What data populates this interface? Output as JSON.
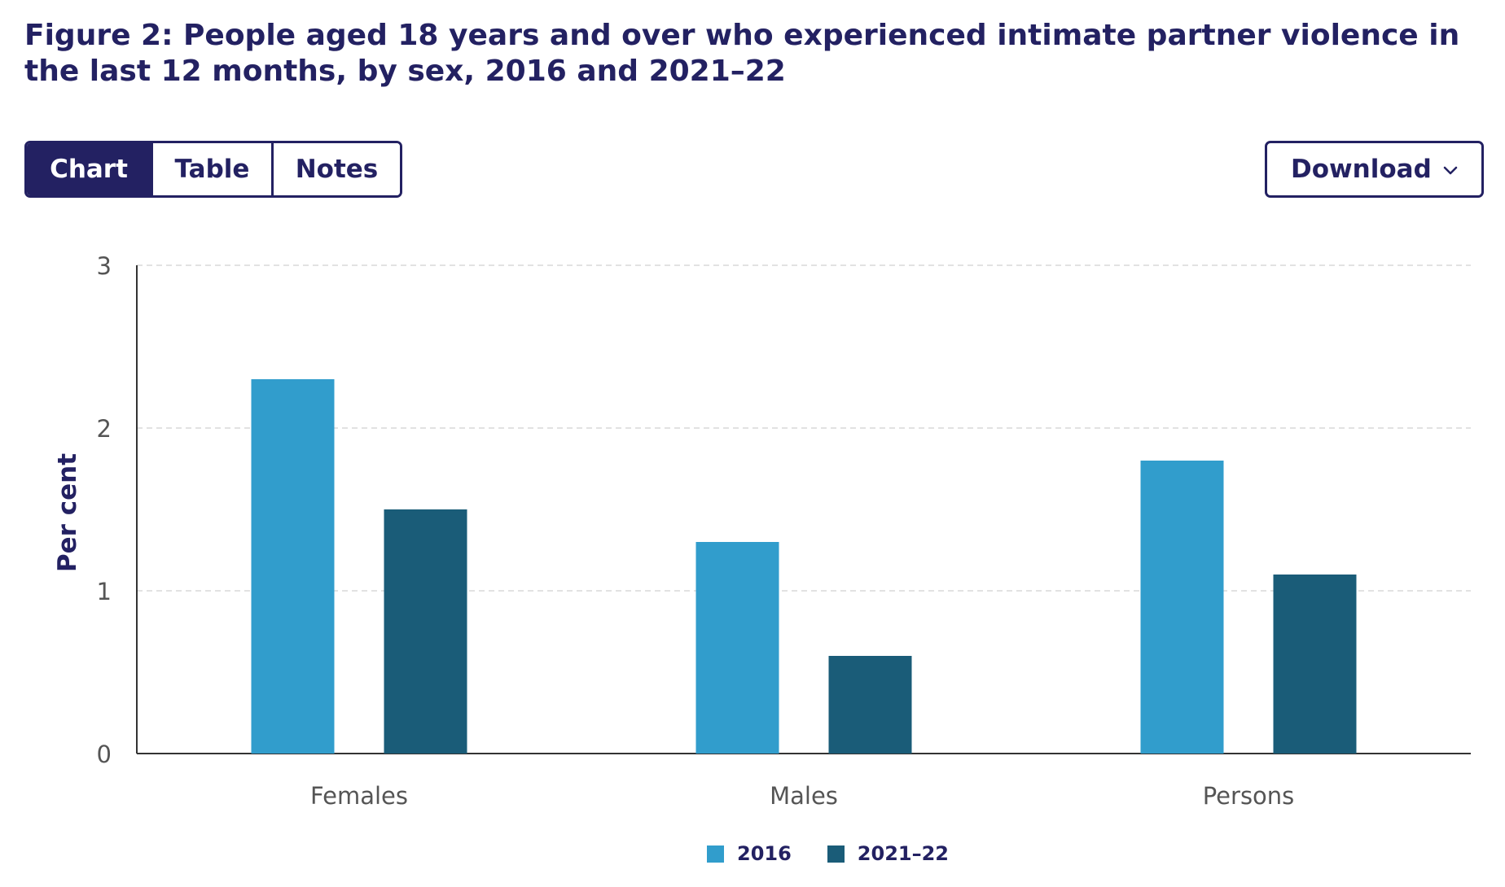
{
  "title": "Figure 2: People aged 18 years and over who experienced intimate partner violence in the last 12 months, by sex, 2016 and 2021–22",
  "tabs": [
    {
      "label": "Chart",
      "active": true
    },
    {
      "label": "Table",
      "active": false
    },
    {
      "label": "Notes",
      "active": false
    }
  ],
  "download": {
    "label": "Download",
    "icon": "chevron-down-icon"
  },
  "colors": {
    "navy": "#232162",
    "series_2016": "#319DCC",
    "series_2021": "#1A5C78"
  },
  "chart_data": {
    "type": "bar",
    "title": "",
    "xlabel": "",
    "ylabel": "Per cent",
    "categories": [
      "Females",
      "Males",
      "Persons"
    ],
    "series": [
      {
        "name": "2016",
        "values": [
          2.3,
          1.3,
          1.8
        ]
      },
      {
        "name": "2021–22",
        "values": [
          1.5,
          0.6,
          1.1
        ]
      }
    ],
    "ylim": [
      0,
      3
    ],
    "yticks": [
      0,
      1,
      2,
      3
    ],
    "grid": true,
    "legend": "bottom-center"
  }
}
